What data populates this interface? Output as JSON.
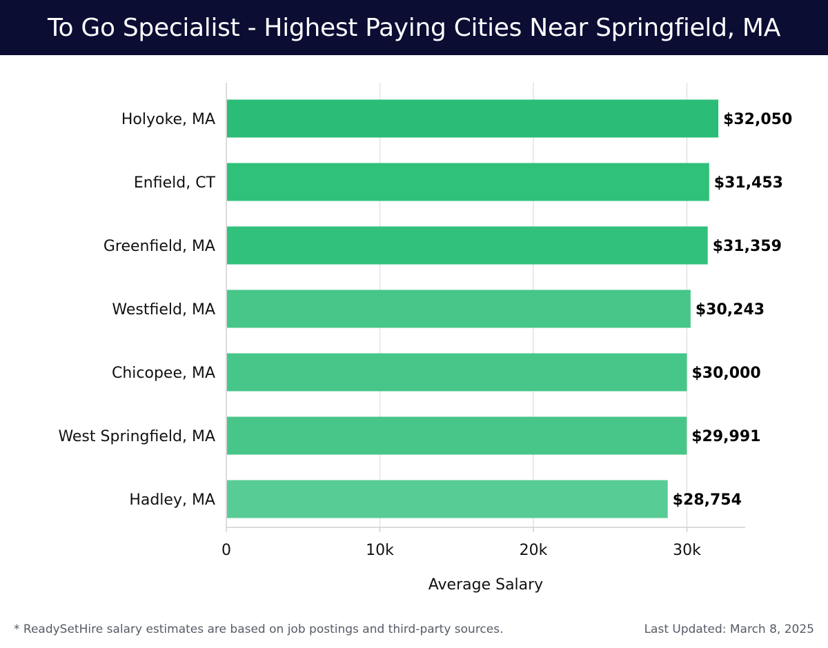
{
  "header": {
    "title": "To Go Specialist - Highest Paying Cities Near Springfield, MA"
  },
  "chart_data": {
    "type": "bar",
    "orientation": "horizontal",
    "categories": [
      "Holyoke, MA",
      "Enfield, CT",
      "Greenfield, MA",
      "Westfield, MA",
      "Chicopee, MA",
      "West Springfield, MA",
      "Hadley, MA"
    ],
    "values": [
      32050,
      31453,
      31359,
      30243,
      30000,
      29991,
      28754
    ],
    "value_labels": [
      "$32,050",
      "$31,453",
      "$31,359",
      "$30,243",
      "$30,000",
      "$29,991",
      "$28,754"
    ],
    "bar_colors": [
      "#2bbd77",
      "#2fc07a",
      "#31c17c",
      "#46c688",
      "#47c689",
      "#48c689",
      "#58cc95"
    ],
    "xlim": [
      0,
      33800
    ],
    "xticks": [
      0,
      10000,
      20000,
      30000
    ],
    "xtick_labels": [
      "0",
      "10k",
      "20k",
      "30k"
    ],
    "xlabel": "Average Salary",
    "ylabel": "",
    "grid": true
  },
  "footer": {
    "note": "* ReadySetHire salary estimates are based on job postings and third-party sources.",
    "updated": "Last Updated: March 8, 2025"
  }
}
